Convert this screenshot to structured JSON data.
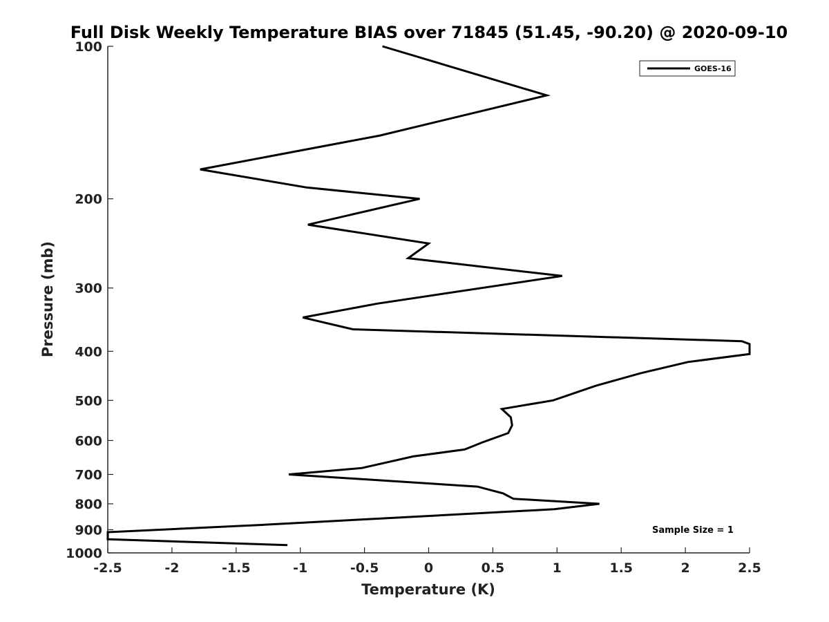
{
  "chart_data": {
    "type": "line",
    "title": "Full Disk Weekly Temperature BIAS over 71845 (51.45, -90.20) @ 2020-09-10",
    "xlabel": "Temperature (K)",
    "ylabel": "Pressure (mb)",
    "xlim": [
      -2.5,
      2.5
    ],
    "ylim": [
      1000,
      100
    ],
    "yscale": "log",
    "y_reversed": true,
    "grid": false,
    "legend_position": "top-right",
    "x_ticks": [
      -2.5,
      -2,
      -1.5,
      -1,
      -0.5,
      0,
      0.5,
      1,
      1.5,
      2,
      2.5
    ],
    "x_tick_labels": [
      "-2.5",
      "-2",
      "-1.5",
      "-1",
      "-0.5",
      "0",
      "0.5",
      "1",
      "1.5",
      "2",
      "2.5"
    ],
    "y_ticks": [
      100,
      200,
      300,
      400,
      500,
      600,
      700,
      800,
      900,
      1000
    ],
    "y_tick_labels": [
      "100",
      "200",
      "300",
      "400",
      "500",
      "600",
      "700",
      "800",
      "900",
      "1000"
    ],
    "series": [
      {
        "name": "GOES-16",
        "color": "#000000",
        "points": [
          {
            "x": -0.36,
            "p": 100
          },
          {
            "x": 0.92,
            "p": 125
          },
          {
            "x": -0.38,
            "p": 150
          },
          {
            "x": -1.78,
            "p": 175
          },
          {
            "x": -0.95,
            "p": 190
          },
          {
            "x": -0.07,
            "p": 200
          },
          {
            "x": -0.94,
            "p": 225
          },
          {
            "x": 0.0,
            "p": 245
          },
          {
            "x": -0.16,
            "p": 262
          },
          {
            "x": 1.04,
            "p": 284
          },
          {
            "x": -0.4,
            "p": 322
          },
          {
            "x": -0.98,
            "p": 343
          },
          {
            "x": -0.59,
            "p": 362
          },
          {
            "x": 2.44,
            "p": 382
          },
          {
            "x": 2.5,
            "p": 387
          },
          {
            "x": 2.5,
            "p": 405
          },
          {
            "x": 2.02,
            "p": 420
          },
          {
            "x": 1.65,
            "p": 442
          },
          {
            "x": 1.3,
            "p": 468
          },
          {
            "x": 0.97,
            "p": 500
          },
          {
            "x": 0.57,
            "p": 520
          },
          {
            "x": 0.64,
            "p": 540
          },
          {
            "x": 0.65,
            "p": 560
          },
          {
            "x": 0.62,
            "p": 580
          },
          {
            "x": 0.42,
            "p": 605
          },
          {
            "x": 0.28,
            "p": 625
          },
          {
            "x": -0.12,
            "p": 645
          },
          {
            "x": -0.52,
            "p": 680
          },
          {
            "x": -1.09,
            "p": 700
          },
          {
            "x": 0.38,
            "p": 740
          },
          {
            "x": 0.58,
            "p": 763
          },
          {
            "x": 0.66,
            "p": 782
          },
          {
            "x": 1.33,
            "p": 800
          },
          {
            "x": 0.98,
            "p": 820
          },
          {
            "x": -0.36,
            "p": 855
          },
          {
            "x": -1.28,
            "p": 880
          },
          {
            "x": -2.5,
            "p": 910
          },
          {
            "x": -2.5,
            "p": 940
          },
          {
            "x": -1.1,
            "p": 965
          }
        ]
      }
    ],
    "annotations": [
      "Sample Size = 1"
    ]
  }
}
